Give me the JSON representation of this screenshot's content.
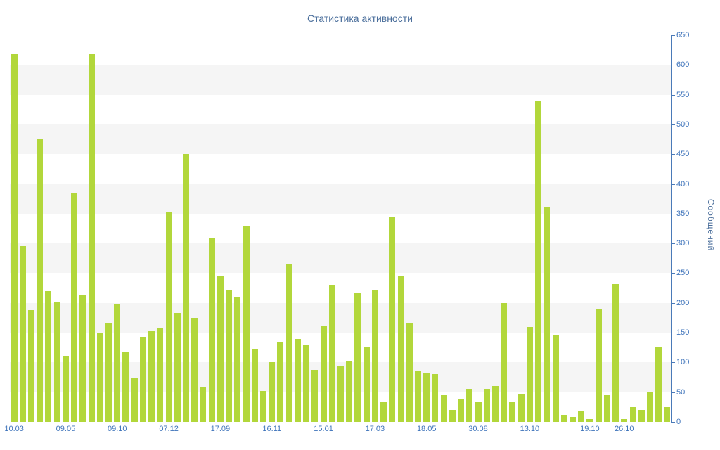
{
  "chart_data": {
    "type": "bar",
    "title": "Статистика активности",
    "xlabel": "",
    "ylabel": "Сообщений",
    "ylim": [
      0,
      650
    ],
    "grid": "horizontal-bands",
    "legend": "none",
    "axis_position": "right",
    "colors": {
      "bar": "#b2d73b",
      "axis": "#4a7ab8",
      "tick_label": "#3f74bb",
      "title": "#4a6e9b",
      "band_gray": "#f5f5f5",
      "band_white": "#ffffff"
    },
    "y_ticks": [
      0,
      50,
      100,
      150,
      200,
      250,
      300,
      350,
      400,
      450,
      500,
      550,
      600,
      650
    ],
    "values": [
      618,
      295,
      188,
      475,
      220,
      202,
      110,
      385,
      213,
      618,
      150,
      165,
      197,
      118,
      75,
      143,
      152,
      157,
      353,
      183,
      450,
      175,
      58,
      310,
      245,
      222,
      210,
      328,
      123,
      52,
      100,
      133,
      265,
      140,
      130,
      88,
      162,
      230,
      95,
      102,
      218,
      127,
      222,
      33,
      345,
      246,
      165,
      85,
      83,
      80,
      45,
      20,
      38,
      55,
      33,
      55,
      60,
      200,
      33,
      47,
      160,
      540,
      360,
      145,
      12,
      8,
      18,
      5,
      190,
      45,
      232,
      5,
      25,
      20,
      50,
      127,
      25
    ],
    "x_tick_labels": [
      {
        "label": "10.03",
        "index": 0
      },
      {
        "label": "09.05",
        "index": 6
      },
      {
        "label": "09.10",
        "index": 12
      },
      {
        "label": "07.12",
        "index": 18
      },
      {
        "label": "17.09",
        "index": 24
      },
      {
        "label": "16.11",
        "index": 30
      },
      {
        "label": "15.01",
        "index": 36
      },
      {
        "label": "17.03",
        "index": 42
      },
      {
        "label": "18.05",
        "index": 48
      },
      {
        "label": "30.08",
        "index": 54
      },
      {
        "label": "13.10",
        "index": 60
      },
      {
        "label": "19.10",
        "index": 67
      },
      {
        "label": "26.10",
        "index": 71
      }
    ]
  }
}
